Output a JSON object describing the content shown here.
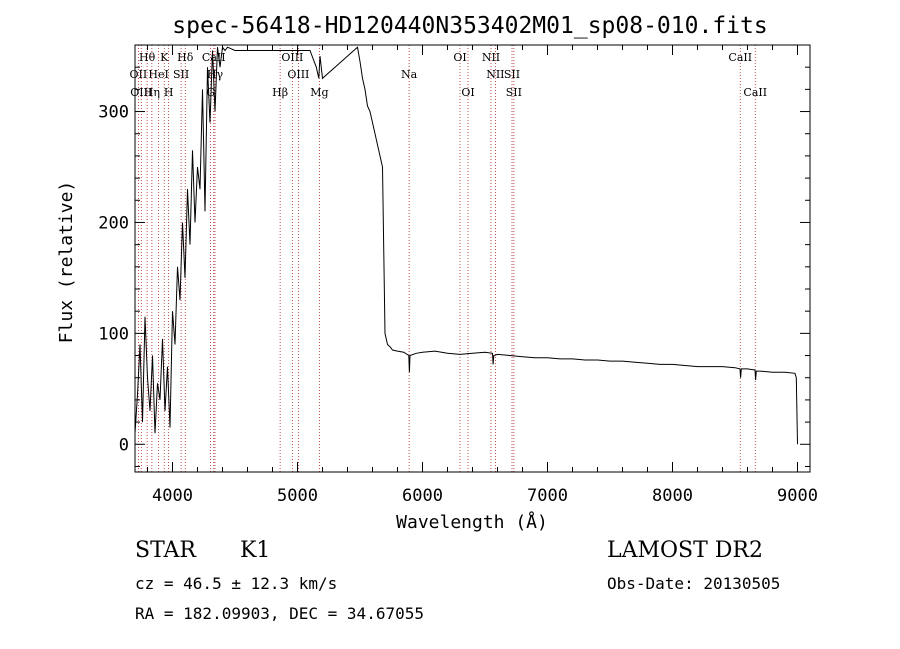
{
  "info": {
    "object_class": "STAR",
    "subclass": "K1",
    "survey": "LAMOST DR2",
    "cz": "cz = 46.5 ± 12.3 km/s",
    "obs_date": "Obs-Date: 20130505",
    "coords": "RA = 182.09903, DEC =  34.67055"
  },
  "chart_data": {
    "type": "line",
    "title": "spec-56418-HD120440N353402M01_sp08-010.fits",
    "xlabel": "Wavelength (Å)",
    "ylabel": "Flux (relative)",
    "xlim": [
      3700,
      9100
    ],
    "ylim": [
      -25,
      360
    ],
    "x_ticks": [
      4000,
      5000,
      6000,
      7000,
      8000,
      9000
    ],
    "y_ticks": [
      0,
      100,
      200,
      300
    ],
    "grid": false,
    "line_color": "#000000",
    "marker_color": "#b22222",
    "series": [
      {
        "x": [
          3700,
          3720,
          3740,
          3760,
          3780,
          3800,
          3820,
          3840,
          3860,
          3880,
          3900,
          3920,
          3940,
          3960,
          3980,
          4000,
          4020,
          4040,
          4060,
          4080,
          4100,
          4120,
          4140,
          4160,
          4180,
          4200,
          4220,
          4240,
          4260,
          4280,
          4300,
          4320,
          4340,
          4360,
          4380,
          4400,
          4420,
          4440,
          4500,
          4700,
          4900,
          5000,
          5100,
          5150,
          5170,
          5180,
          5200,
          5300,
          5400,
          5480,
          5500,
          5520,
          5540,
          5560,
          5580,
          5600,
          5620,
          5640,
          5660,
          5680,
          5700,
          5720,
          5740,
          5760,
          5800,
          5850,
          5890,
          5895,
          5900,
          5950,
          6000,
          6100,
          6200,
          6300,
          6400,
          6500,
          6560,
          6565,
          6570,
          6600,
          6700,
          6800,
          6900,
          7000,
          7100,
          7200,
          7300,
          7400,
          7500,
          7600,
          7700,
          7800,
          7900,
          8000,
          8100,
          8200,
          8300,
          8400,
          8500,
          8540,
          8545,
          8550,
          8600,
          8660,
          8665,
          8670,
          8700,
          8800,
          8900,
          8980,
          8990,
          9000
        ],
        "y": [
          10,
          45,
          90,
          20,
          115,
          60,
          30,
          80,
          10,
          55,
          40,
          95,
          30,
          70,
          15,
          120,
          90,
          160,
          130,
          200,
          150,
          230,
          180,
          265,
          200,
          250,
          230,
          320,
          210,
          340,
          290,
          355,
          300,
          358,
          340,
          358,
          355,
          358,
          355,
          355,
          355,
          355,
          355,
          340,
          330,
          350,
          330,
          340,
          350,
          358,
          345,
          330,
          320,
          305,
          300,
          290,
          280,
          270,
          260,
          250,
          100,
          90,
          88,
          85,
          84,
          83,
          80,
          65,
          80,
          82,
          83,
          84,
          82,
          81,
          82,
          83,
          82,
          72,
          80,
          81,
          80,
          79,
          78,
          78,
          77,
          77,
          76,
          76,
          75,
          75,
          74,
          73,
          72,
          72,
          71,
          70,
          70,
          70,
          69,
          68,
          60,
          68,
          68,
          67,
          58,
          66,
          66,
          65,
          65,
          64,
          60,
          0
        ]
      }
    ],
    "lines": [
      {
        "name": "Hθ",
        "x": 3797,
        "row": 0
      },
      {
        "name": "K",
        "x": 3934,
        "row": 0
      },
      {
        "name": "Hδ",
        "x": 4102,
        "row": 0
      },
      {
        "name": "CaII",
        "x": 4330,
        "row": 0
      },
      {
        "name": "OIII",
        "x": 4959,
        "row": 0
      },
      {
        "name": "OI",
        "x": 6300,
        "row": 0
      },
      {
        "name": "NII",
        "x": 6548,
        "row": 0
      },
      {
        "name": "CaII",
        "x": 8542,
        "row": 0
      },
      {
        "name": "OII",
        "x": 3727,
        "row": 1
      },
      {
        "name": "HeI",
        "x": 3889,
        "row": 1
      },
      {
        "name": "SII",
        "x": 4069,
        "row": 1
      },
      {
        "name": "Hγ",
        "x": 4340,
        "row": 1
      },
      {
        "name": "OIII",
        "x": 5007,
        "row": 1
      },
      {
        "name": "Na",
        "x": 5893,
        "row": 1
      },
      {
        "name": "NII",
        "x": 6583,
        "row": 1
      },
      {
        "name": "SII",
        "x": 6716,
        "row": 1
      },
      {
        "name": "OIII",
        "x": 3750,
        "row": 2
      },
      {
        "name": "Hη",
        "x": 3835,
        "row": 2
      },
      {
        "name": "H",
        "x": 3969,
        "row": 2
      },
      {
        "name": "G",
        "x": 4305,
        "row": 2
      },
      {
        "name": "Hβ",
        "x": 4861,
        "row": 2
      },
      {
        "name": "Mg",
        "x": 5175,
        "row": 2
      },
      {
        "name": "OI",
        "x": 6364,
        "row": 2
      },
      {
        "name": "SII",
        "x": 6731,
        "row": 2
      },
      {
        "name": "CaII",
        "x": 8662,
        "row": 2
      }
    ]
  }
}
